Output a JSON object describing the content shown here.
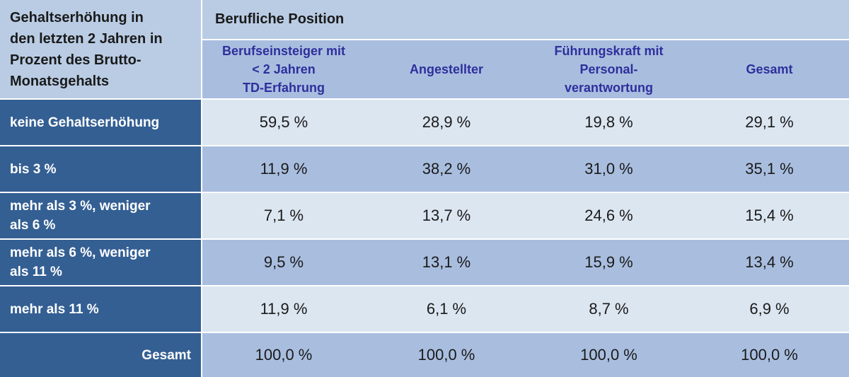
{
  "corner_label": [
    "Gehaltserhöhung in",
    "den letzten 2 Jahren in",
    "Prozent des Brutto-",
    "Monatsgehalts"
  ],
  "group_header": "Berufliche Position",
  "columns": [
    [
      "Berufseinsteiger mit",
      "< 2 Jahren",
      "TD-Erfahrung"
    ],
    [
      "Angestellter"
    ],
    [
      "Führungskraft mit",
      "Personal-",
      "verantwortung"
    ],
    [
      "Gesamt"
    ]
  ],
  "rows": [
    {
      "label": [
        "keine Gehaltserhöhung"
      ],
      "values": [
        "59,5 %",
        "28,9 %",
        "19,8 %",
        "29,1 %"
      ]
    },
    {
      "label": [
        "bis 3 %"
      ],
      "values": [
        "11,9 %",
        "38,2 %",
        "31,0 %",
        "35,1 %"
      ]
    },
    {
      "label": [
        "mehr als 3 %, weniger",
        "als 6 %"
      ],
      "values": [
        "7,1 %",
        "13,7 %",
        "24,6 %",
        "15,4 %"
      ]
    },
    {
      "label": [
        "mehr als 6 %, weniger",
        "als 11 %"
      ],
      "values": [
        "9,5 %",
        "13,1 %",
        "15,9 %",
        "13,4 %"
      ]
    },
    {
      "label": [
        "mehr als 11 %"
      ],
      "values": [
        "11,9 %",
        "6,1 %",
        "8,7 %",
        "6,9 %"
      ]
    },
    {
      "label": [
        "Gesamt"
      ],
      "values": [
        "100,0 %",
        "100,0 %",
        "100,0 %",
        "100,0 %"
      ]
    }
  ],
  "colors": {
    "header_bg": "#b9cce4",
    "column_header_bg": "#a9bedf",
    "column_header_text": "#2e2f9c",
    "row_label_bg": "#345f93",
    "row_light_bg": "#dce6f1",
    "row_dark_bg": "#a9bedf"
  }
}
